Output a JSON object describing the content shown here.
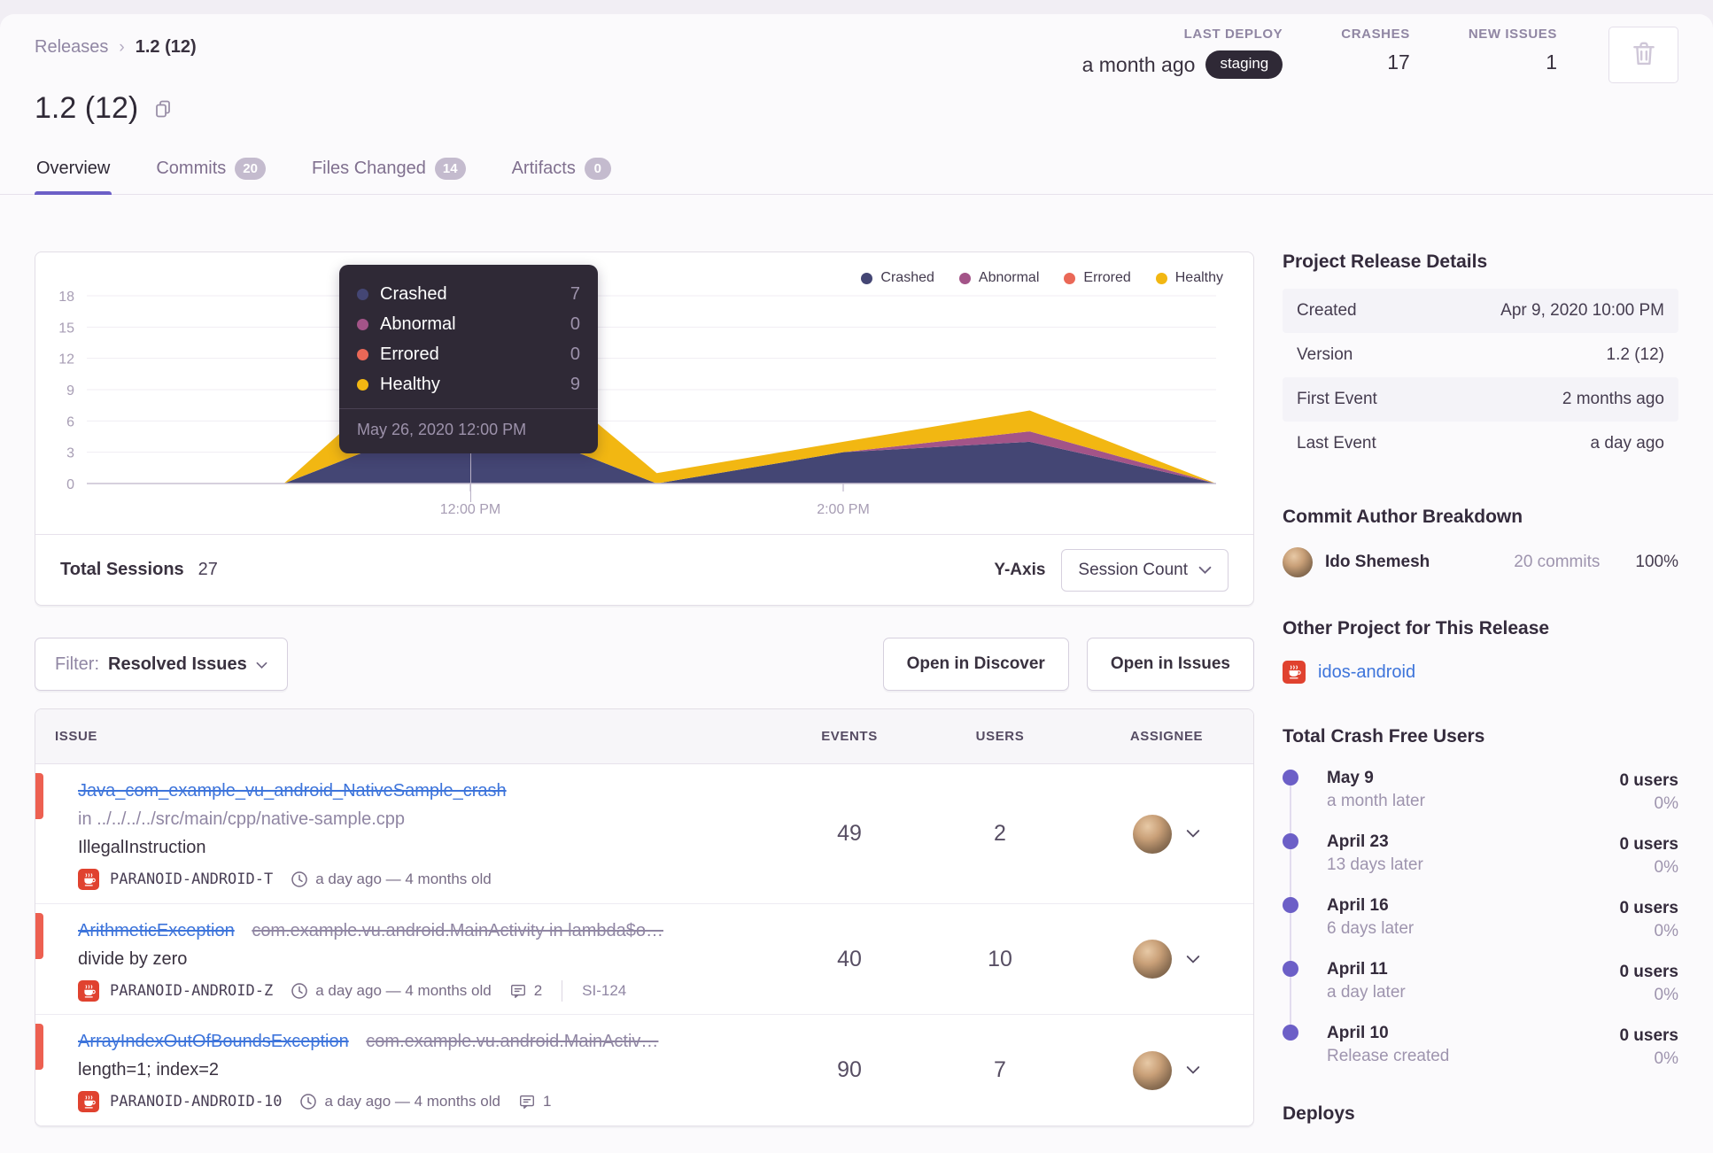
{
  "colors": {
    "accent": "#6c5fc7",
    "link": "#3d74db",
    "level_red": "#ed6051",
    "project_red": "#e0422f",
    "tooltip_bg": "#2f2936",
    "pill_bg": "#2f2936",
    "badge_bg": "#c4bbce"
  },
  "breadcrumb": {
    "parent": "Releases",
    "current": "1.2 (12)"
  },
  "header_stats": {
    "last_deploy": {
      "label": "LAST DEPLOY",
      "value": "a month ago",
      "env": "staging"
    },
    "crashes": {
      "label": "CRASHES",
      "value": "17"
    },
    "new_issues": {
      "label": "NEW ISSUES",
      "value": "1"
    }
  },
  "page": {
    "title": "1.2 (12)"
  },
  "tabs": [
    {
      "label": "Overview"
    },
    {
      "label": "Commits",
      "badge": "20"
    },
    {
      "label": "Files Changed",
      "badge": "14"
    },
    {
      "label": "Artifacts",
      "badge": "0"
    }
  ],
  "chart_data": {
    "type": "area",
    "stacked": true,
    "x": [
      "10:00 AM",
      "11:00 AM",
      "12:00 PM",
      "1:00 PM",
      "2:00 PM",
      "3:00 PM",
      "4:00 PM"
    ],
    "x_tick_labels": [
      "12:00 PM",
      "2:00 PM"
    ],
    "series": [
      {
        "name": "Crashed",
        "color": "#444674",
        "values": [
          0,
          0,
          7,
          0,
          3,
          4,
          0
        ]
      },
      {
        "name": "Abnormal",
        "color": "#a35488",
        "values": [
          0,
          0,
          0,
          0,
          0,
          1,
          0
        ]
      },
      {
        "name": "Errored",
        "color": "#ea6857",
        "values": [
          0,
          0,
          0,
          0,
          0,
          0,
          0
        ]
      },
      {
        "name": "Healthy",
        "color": "#f2b712",
        "values": [
          0,
          0,
          9,
          1,
          1,
          2,
          0
        ]
      }
    ],
    "ylim": [
      0,
      18
    ],
    "yticks": [
      0,
      3,
      6,
      9,
      12,
      15,
      18
    ],
    "grid": true,
    "legend_position": "top-right",
    "tooltip_point": {
      "x": "12:00 PM",
      "Crashed": 7,
      "Abnormal": 0,
      "Errored": 0,
      "Healthy": 9
    }
  },
  "chart_card": {
    "tooltip": {
      "rows": [
        {
          "label": "Crashed",
          "value": "7"
        },
        {
          "label": "Abnormal",
          "value": "0"
        },
        {
          "label": "Errored",
          "value": "0"
        },
        {
          "label": "Healthy",
          "value": "9"
        }
      ],
      "timestamp": "May 26, 2020 12:00 PM"
    },
    "footer": {
      "sessions_label": "Total Sessions",
      "sessions_value": "27",
      "yaxis_label": "Y-Axis",
      "yaxis_button": "Session Count"
    }
  },
  "filter_bar": {
    "label": "Filter:",
    "value": "Resolved Issues",
    "discover_button": "Open in Discover",
    "issues_button": "Open in Issues"
  },
  "issues_table": {
    "columns": [
      "ISSUE",
      "EVENTS",
      "USERS",
      "ASSIGNEE"
    ],
    "rows": [
      {
        "title": "Java_com_example_vu_android_NativeSample_crash",
        "culprit": "in ../../../../src/main/cpp/native-sample.cpp",
        "message": "IllegalInstruction",
        "project": "PARANOID-ANDROID-T",
        "age": "a day ago — 4 months old",
        "events": "49",
        "users": "2"
      },
      {
        "title": "ArithmeticException",
        "culprit": "com.example.vu.android.MainActivity in lambda$o…",
        "message": "divide by zero",
        "project": "PARANOID-ANDROID-Z",
        "age": "a day ago — 4 months old",
        "comments": "2",
        "short_id": "SI-124",
        "events": "40",
        "users": "10"
      },
      {
        "title": "ArrayIndexOutOfBoundsException",
        "culprit": "com.example.vu.android.MainActiv…",
        "message": "length=1; index=2",
        "project": "PARANOID-ANDROID-10",
        "age": "a day ago — 4 months old",
        "comments": "1",
        "events": "90",
        "users": "7"
      }
    ]
  },
  "sidebar": {
    "release_details": {
      "title": "Project Release Details",
      "rows": [
        [
          "Created",
          "Apr 9, 2020 10:00 PM"
        ],
        [
          "Version",
          "1.2 (12)"
        ],
        [
          "First Event",
          "2 months ago"
        ],
        [
          "Last Event",
          "a day ago"
        ]
      ]
    },
    "commit_authors": {
      "title": "Commit Author Breakdown",
      "author": {
        "name": "Ido Shemesh",
        "commits": "20 commits",
        "percent": "100%"
      }
    },
    "other_project": {
      "title": "Other Project for This Release",
      "project": "idos-android"
    },
    "crash_free": {
      "title": "Total Crash Free Users",
      "items": [
        {
          "date": "May 9",
          "sub": "a month later",
          "users": "0 users",
          "pct": "0%"
        },
        {
          "date": "April 23",
          "sub": "13 days later",
          "users": "0 users",
          "pct": "0%"
        },
        {
          "date": "April 16",
          "sub": "6 days later",
          "users": "0 users",
          "pct": "0%"
        },
        {
          "date": "April 11",
          "sub": "a day later",
          "users": "0 users",
          "pct": "0%"
        },
        {
          "date": "April 10",
          "sub": "Release created",
          "users": "0 users",
          "pct": "0%"
        }
      ]
    },
    "deploys_title": "Deploys"
  }
}
